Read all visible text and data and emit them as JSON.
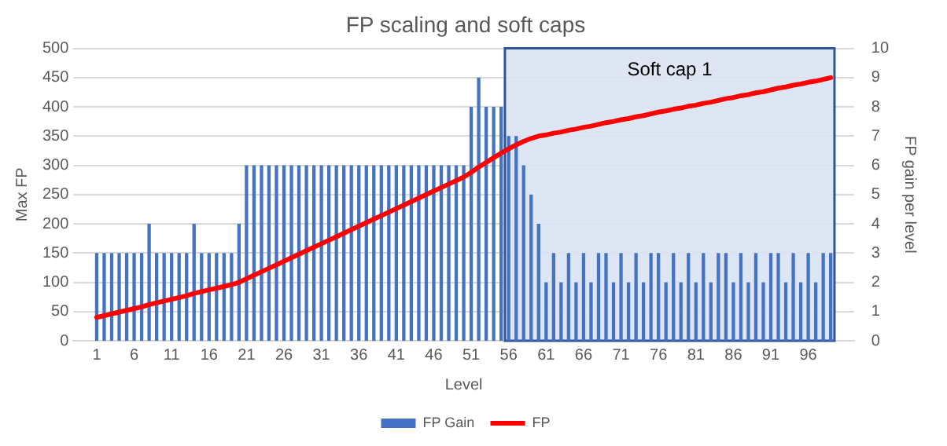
{
  "chart_data": {
    "type": "bar",
    "title": "FP scaling and soft caps",
    "xlabel": "Level",
    "ylabel": "Max FP",
    "y2label": "FP gain per level",
    "x": [
      1,
      2,
      3,
      4,
      5,
      6,
      7,
      8,
      9,
      10,
      11,
      12,
      13,
      14,
      15,
      16,
      17,
      18,
      19,
      20,
      21,
      22,
      23,
      24,
      25,
      26,
      27,
      28,
      29,
      30,
      31,
      32,
      33,
      34,
      35,
      36,
      37,
      38,
      39,
      40,
      41,
      42,
      43,
      44,
      45,
      46,
      47,
      48,
      49,
      50,
      51,
      52,
      53,
      54,
      55,
      56,
      57,
      58,
      59,
      60,
      61,
      62,
      63,
      64,
      65,
      66,
      67,
      68,
      69,
      70,
      71,
      72,
      73,
      74,
      75,
      76,
      77,
      78,
      79,
      80,
      81,
      82,
      83,
      84,
      85,
      86,
      87,
      88,
      89,
      90,
      91,
      92,
      93,
      94,
      95,
      96,
      97,
      98,
      99
    ],
    "xlim": [
      0.5,
      99.5
    ],
    "xticks": [
      1,
      6,
      11,
      16,
      21,
      26,
      31,
      36,
      41,
      46,
      51,
      56,
      61,
      66,
      71,
      76,
      81,
      86,
      91,
      96
    ],
    "ylim": [
      0,
      500
    ],
    "yticks": [
      0,
      50,
      100,
      150,
      200,
      250,
      300,
      350,
      400,
      450,
      500
    ],
    "y2lim": [
      0,
      10
    ],
    "y2ticks": [
      0,
      1,
      2,
      3,
      4,
      5,
      6,
      7,
      8,
      9,
      10
    ],
    "series": [
      {
        "name": "FP Gain",
        "axis": "y2",
        "color": "#4472c4",
        "values": [
          3,
          3,
          3,
          3,
          3,
          3,
          3,
          4,
          3,
          3,
          3,
          3,
          3,
          4,
          3,
          3,
          3,
          3,
          3,
          4,
          6,
          6,
          6,
          6,
          6,
          6,
          6,
          6,
          6,
          6,
          6,
          6,
          6,
          6,
          6,
          6,
          6,
          6,
          6,
          6,
          6,
          6,
          6,
          6,
          6,
          6,
          6,
          6,
          6,
          6,
          8,
          9,
          8,
          8,
          8,
          7,
          7,
          6,
          5,
          4,
          2,
          3,
          2,
          3,
          2,
          3,
          2,
          3,
          3,
          2,
          3,
          2,
          3,
          2,
          3,
          3,
          2,
          3,
          2,
          3,
          2,
          3,
          2,
          3,
          3,
          2,
          3,
          2,
          3,
          2,
          3,
          3,
          2,
          3,
          2,
          3,
          2,
          3,
          3
        ]
      },
      {
        "name": "FP",
        "type": "line",
        "axis": "y",
        "color": "#ff0000",
        "values": [
          40,
          43,
          46,
          49,
          52,
          55,
          58,
          62,
          65,
          68,
          71,
          74,
          77,
          81,
          84,
          87,
          90,
          93,
          96,
          100,
          106,
          112,
          118,
          124,
          130,
          136,
          142,
          148,
          154,
          160,
          166,
          172,
          178,
          184,
          190,
          196,
          202,
          208,
          214,
          220,
          226,
          232,
          238,
          244,
          250,
          256,
          262,
          268,
          274,
          280,
          288,
          297,
          305,
          313,
          321,
          328,
          335,
          341,
          346,
          350,
          352,
          355,
          357,
          360,
          362,
          365,
          367,
          370,
          373,
          375,
          378,
          380,
          383,
          385,
          388,
          391,
          393,
          396,
          398,
          401,
          403,
          406,
          408,
          411,
          414,
          416,
          419,
          421,
          424,
          426,
          429,
          432,
          434,
          437,
          439,
          442,
          444,
          447,
          450
        ]
      }
    ],
    "bands": [
      {
        "axis": "x",
        "from": 55.5,
        "to": 99.5,
        "label": "Soft cap 1",
        "color": "#dae3f3"
      }
    ],
    "grid": "y",
    "legend": "bottom",
    "marker": "none",
    "line_style": "solid"
  }
}
